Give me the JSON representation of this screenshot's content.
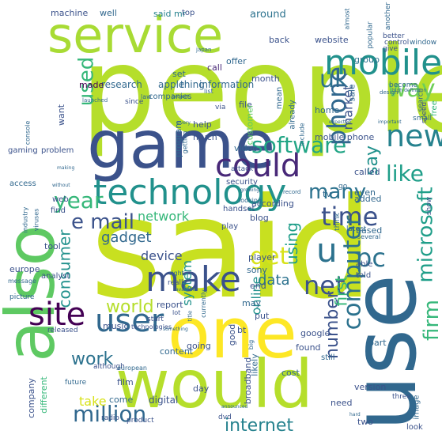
{
  "cloud": {
    "words": [
      {
        "text": "people",
        "color": "#b5de2b"
      },
      {
        "text": "said",
        "color": "#c8e020"
      },
      {
        "text": "service",
        "color": "#a8db34"
      },
      {
        "text": "game",
        "color": "#3b528b"
      },
      {
        "text": "also",
        "color": "#5ec962"
      },
      {
        "text": "one",
        "color": "#fde725"
      },
      {
        "text": "would",
        "color": "#b5de2b"
      },
      {
        "text": "use",
        "color": "#31688e"
      },
      {
        "text": "mobile",
        "color": "#21918c"
      },
      {
        "text": "technology",
        "color": "#21918c"
      },
      {
        "text": "could",
        "color": "#482878"
      },
      {
        "text": "new",
        "color": "#26828e"
      },
      {
        "text": "software",
        "color": "#21a585"
      },
      {
        "text": "make",
        "color": "#3b528b"
      },
      {
        "text": "user",
        "color": "#31688e"
      },
      {
        "text": "site",
        "color": "#440154"
      },
      {
        "text": "u",
        "color": "#2c728e"
      },
      {
        "text": "pc",
        "color": "#2c728e"
      },
      {
        "text": "net",
        "color": "#3b528b"
      },
      {
        "text": "time",
        "color": "#3b528b"
      },
      {
        "text": "year",
        "color": "#35b779"
      },
      {
        "text": "e mail",
        "color": "#3b528b"
      },
      {
        "text": "get",
        "color": "#d8e219"
      },
      {
        "text": "way",
        "color": "#6ece58"
      },
      {
        "text": "uk",
        "color": "#2c728e"
      },
      {
        "text": "like",
        "color": "#1f9e89"
      },
      {
        "text": "many",
        "color": "#2c728e"
      },
      {
        "text": "phone",
        "color": "#31688e"
      },
      {
        "text": "computer",
        "color": "#2c728e"
      },
      {
        "text": "firm",
        "color": "#35b779"
      },
      {
        "text": "microsoft",
        "color": "#1f9e89"
      },
      {
        "text": "million",
        "color": "#31688e"
      },
      {
        "text": "used",
        "color": "#35b779"
      },
      {
        "text": "world",
        "color": "#b5de2b"
      },
      {
        "text": "work",
        "color": "#2c728e"
      },
      {
        "text": "number",
        "color": "#3b528b"
      },
      {
        "text": "consumer",
        "color": "#21918c"
      },
      {
        "text": "internet",
        "color": "#26828e"
      },
      {
        "text": "network",
        "color": "#35b779"
      },
      {
        "text": "gadget",
        "color": "#31688e"
      },
      {
        "text": "device",
        "color": "#3b528b"
      },
      {
        "text": "data",
        "color": "#2c728e"
      },
      {
        "text": "using",
        "color": "#1f9e89"
      },
      {
        "text": "first",
        "color": "#35b779"
      },
      {
        "text": "say",
        "color": "#21918c"
      },
      {
        "text": "take",
        "color": "#d8e219"
      },
      {
        "text": "online",
        "color": "#21918c"
      },
      {
        "text": "system",
        "color": "#21918c"
      },
      {
        "text": "market",
        "color": "#3b528b"
      },
      {
        "text": "research",
        "color": "#31688e"
      },
      {
        "text": "information",
        "color": "#31688e"
      },
      {
        "text": "apple",
        "color": "#31688e"
      },
      {
        "text": "thing",
        "color": "#31688e"
      },
      {
        "text": "made",
        "color": "#440154"
      },
      {
        "text": "machine",
        "color": "#3b528b"
      },
      {
        "text": "well",
        "color": "#31688e"
      },
      {
        "text": "said mr",
        "color": "#26828e"
      },
      {
        "text": "top",
        "color": "#3b528b"
      },
      {
        "text": "around",
        "color": "#2c728e"
      },
      {
        "text": "website",
        "color": "#3b528b"
      },
      {
        "text": "group",
        "color": "#2c728e"
      },
      {
        "text": "offer",
        "color": "#31688e"
      },
      {
        "text": "back",
        "color": "#3b528b"
      },
      {
        "text": "call",
        "color": "#482878"
      },
      {
        "text": "month",
        "color": "#3b528b"
      },
      {
        "text": "set",
        "color": "#31688e"
      },
      {
        "text": "help",
        "color": "#3b528b"
      },
      {
        "text": "much",
        "color": "#3b528b"
      },
      {
        "text": "mean",
        "color": "#31688e"
      },
      {
        "text": "already",
        "color": "#31688e"
      },
      {
        "text": "file",
        "color": "#3b528b"
      },
      {
        "text": "customer",
        "color": "#5ec962"
      },
      {
        "text": "program",
        "color": "#31688e"
      },
      {
        "text": "want",
        "color": "#3b528b"
      },
      {
        "text": "home",
        "color": "#31688e"
      },
      {
        "text": "sale",
        "color": "#31688e"
      },
      {
        "text": "mobile phone",
        "color": "#3b528b"
      },
      {
        "text": "video",
        "color": "#31688e"
      },
      {
        "text": "play",
        "color": "#3b528b"
      },
      {
        "text": "security",
        "color": "#3b528b"
      },
      {
        "text": "tv",
        "color": "#31688e"
      },
      {
        "text": "called",
        "color": "#3b528b"
      },
      {
        "text": "even",
        "color": "#31688e"
      },
      {
        "text": "added",
        "color": "#31688e"
      },
      {
        "text": "based",
        "color": "#31688e"
      },
      {
        "text": "according",
        "color": "#3b528b"
      },
      {
        "text": "blog",
        "color": "#3b528b"
      },
      {
        "text": "handset",
        "color": "#3b528b"
      },
      {
        "text": "player",
        "color": "#3b528b"
      },
      {
        "text": "sony",
        "color": "#31688e"
      },
      {
        "text": "end",
        "color": "#3b528b"
      },
      {
        "text": "may",
        "color": "#31688e"
      },
      {
        "text": "put",
        "color": "#3b528b"
      },
      {
        "text": "report",
        "color": "#3b528b"
      },
      {
        "text": "music",
        "color": "#3b528b"
      },
      {
        "text": "bt",
        "color": "#3b528b"
      },
      {
        "text": "good",
        "color": "#3b528b"
      },
      {
        "text": "broadband",
        "color": "#3b528b"
      },
      {
        "text": "likely",
        "color": "#31688e"
      },
      {
        "text": "going",
        "color": "#3b528b"
      },
      {
        "text": "content",
        "color": "#31688e"
      },
      {
        "text": "digital",
        "color": "#3b528b"
      },
      {
        "text": "come",
        "color": "#31688e"
      },
      {
        "text": "film",
        "color": "#3b528b"
      },
      {
        "text": "day",
        "color": "#3b528b"
      },
      {
        "text": "cost",
        "color": "#31688e"
      },
      {
        "text": "google",
        "color": "#3b528b"
      },
      {
        "text": "found",
        "color": "#3b528b"
      },
      {
        "text": "still",
        "color": "#31688e"
      },
      {
        "text": "part",
        "color": "#31688e"
      },
      {
        "text": "version",
        "color": "#3b528b"
      },
      {
        "text": "need",
        "color": "#3b528b"
      },
      {
        "text": "two",
        "color": "#3b528b"
      },
      {
        "text": "image",
        "color": "#31688e"
      },
      {
        "text": "look",
        "color": "#3b528b"
      },
      {
        "text": "company",
        "color": "#3b528b"
      },
      {
        "text": "different",
        "color": "#35b779"
      },
      {
        "text": "tool",
        "color": "#3b528b"
      },
      {
        "text": "picture",
        "color": "#31688e"
      },
      {
        "text": "europe",
        "color": "#3b528b"
      },
      {
        "text": "analyst",
        "color": "#3b528b"
      },
      {
        "text": "find",
        "color": "#3b528b"
      },
      {
        "text": "web",
        "color": "#3b528b"
      },
      {
        "text": "access",
        "color": "#31688e"
      },
      {
        "text": "gaming",
        "color": "#3b528b"
      },
      {
        "text": "problem",
        "color": "#3b528b"
      },
      {
        "text": "better",
        "color": "#3b528b"
      },
      {
        "text": "control",
        "color": "#3b528b"
      },
      {
        "text": "window",
        "color": "#31688e"
      },
      {
        "text": "give",
        "color": "#3b528b"
      },
      {
        "text": "popular",
        "color": "#31688e"
      },
      {
        "text": "another",
        "color": "#31688e"
      },
      {
        "text": "become",
        "color": "#31688e"
      },
      {
        "text": "search",
        "color": "#31688e"
      },
      {
        "text": "since",
        "color": "#3b528b"
      },
      {
        "text": "speed",
        "color": "#3b528b"
      },
      {
        "text": "free",
        "color": "#35b779"
      },
      {
        "text": "show",
        "color": "#3b528b"
      },
      {
        "text": "small",
        "color": "#31688e"
      },
      {
        "text": "think",
        "color": "#31688e"
      },
      {
        "text": "start",
        "color": "#3b528b"
      },
      {
        "text": "latest",
        "color": "#31688e"
      },
      {
        "text": "able",
        "color": "#3b528b"
      },
      {
        "text": "told",
        "color": "#3b528b"
      },
      {
        "text": "really",
        "color": "#3b528b"
      },
      {
        "text": "go",
        "color": "#31688e"
      },
      {
        "text": "although",
        "color": "#3b528b"
      },
      {
        "text": "released",
        "color": "#3b528b"
      },
      {
        "text": "future",
        "color": "#31688e"
      },
      {
        "text": "three",
        "color": "#3b528b"
      },
      {
        "text": "radio",
        "color": "#3b528b"
      },
      {
        "text": "dvd",
        "color": "#3b528b"
      },
      {
        "text": "product",
        "color": "#3b528b"
      },
      {
        "text": "via",
        "color": "#3b528b"
      },
      {
        "text": "attack",
        "color": "#3b528b"
      },
      {
        "text": "include",
        "color": "#31688e"
      },
      {
        "text": "looking",
        "color": "#31688e"
      },
      {
        "text": "getting",
        "color": "#31688e"
      },
      {
        "text": "lot",
        "color": "#3b528b"
      },
      {
        "text": "currently",
        "color": "#31688e"
      },
      {
        "text": "technologies",
        "color": "#3b528b"
      },
      {
        "text": "european",
        "color": "#31688e"
      },
      {
        "text": "law",
        "color": "#31688e"
      },
      {
        "text": "companies",
        "color": "#31688e"
      },
      {
        "text": "almost",
        "color": "#31688e"
      },
      {
        "text": "japan",
        "color": "#31688e"
      },
      {
        "text": "list",
        "color": "#31688e"
      },
      {
        "text": "console",
        "color": "#31688e"
      },
      {
        "text": "industry",
        "color": "#31688e"
      },
      {
        "text": "viruses",
        "color": "#31688e"
      },
      {
        "text": "message",
        "color": "#31688e"
      },
      {
        "text": "several",
        "color": "#31688e"
      },
      {
        "text": "right",
        "color": "#31688e"
      },
      {
        "text": "title",
        "color": "#31688e"
      },
      {
        "text": "big",
        "color": "#31688e"
      },
      {
        "text": "design",
        "color": "#31688e"
      },
      {
        "text": "high definition",
        "color": "#31688e"
      },
      {
        "text": "important",
        "color": "#31688e"
      },
      {
        "text": "every",
        "color": "#31688e"
      },
      {
        "text": "expected",
        "color": "#31688e"
      },
      {
        "text": "project",
        "color": "#31688e"
      },
      {
        "text": "something",
        "color": "#31688e"
      },
      {
        "text": "available",
        "color": "#31688e"
      },
      {
        "text": "growing",
        "color": "#31688e"
      },
      {
        "text": "making",
        "color": "#31688e"
      },
      {
        "text": "record",
        "color": "#31688e"
      },
      {
        "text": "launched",
        "color": "#31688e"
      },
      {
        "text": "without",
        "color": "#31688e"
      },
      {
        "text": "hard",
        "color": "#31688e"
      },
      {
        "text": "announced",
        "color": "#31688e"
      }
    ]
  }
}
